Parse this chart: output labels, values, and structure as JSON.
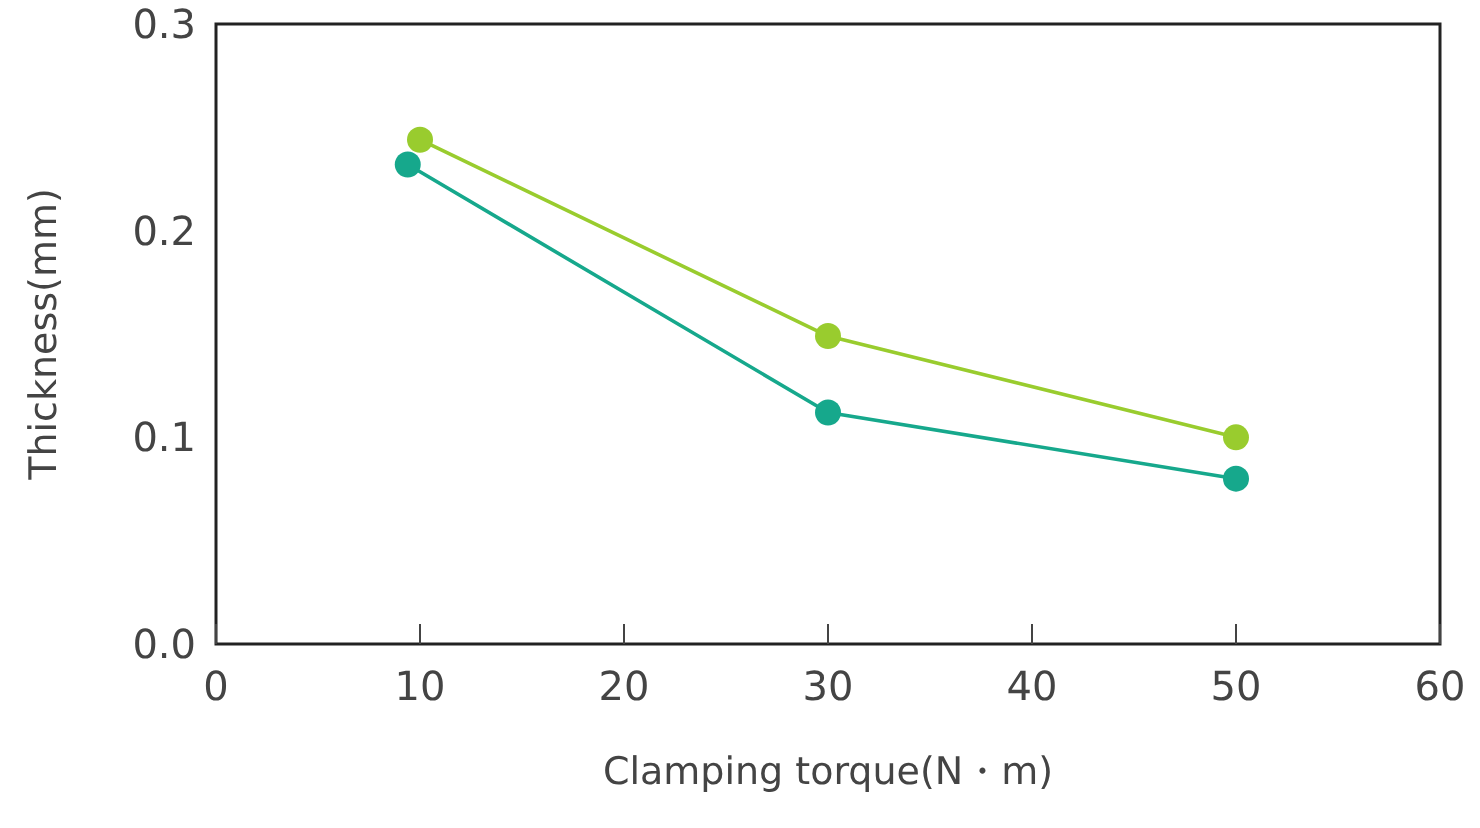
{
  "chart_data": {
    "type": "line",
    "xlabel": "Clamping torque(N・m)",
    "ylabel": "Thickness(mm)",
    "xlim": [
      0,
      60
    ],
    "xticks": [
      0,
      10,
      20,
      30,
      40,
      50,
      60
    ],
    "ylim": [
      0,
      0.3
    ],
    "yticks": [
      {
        "value": 0,
        "label": "0.0"
      },
      {
        "value": 0.1,
        "label": "0.1"
      },
      {
        "value": 0.2,
        "label": "0.2"
      },
      {
        "value": 0.3,
        "label": "0.3"
      }
    ],
    "marker": "circle",
    "grid": false,
    "series": [
      {
        "color": "#99cc2e",
        "x": [
          10,
          30,
          50
        ],
        "values": [
          0.244,
          0.149,
          0.1
        ]
      },
      {
        "color": "#16a88c",
        "x": [
          9.4,
          30,
          50
        ],
        "values": [
          0.232,
          0.112,
          0.08
        ]
      }
    ]
  }
}
